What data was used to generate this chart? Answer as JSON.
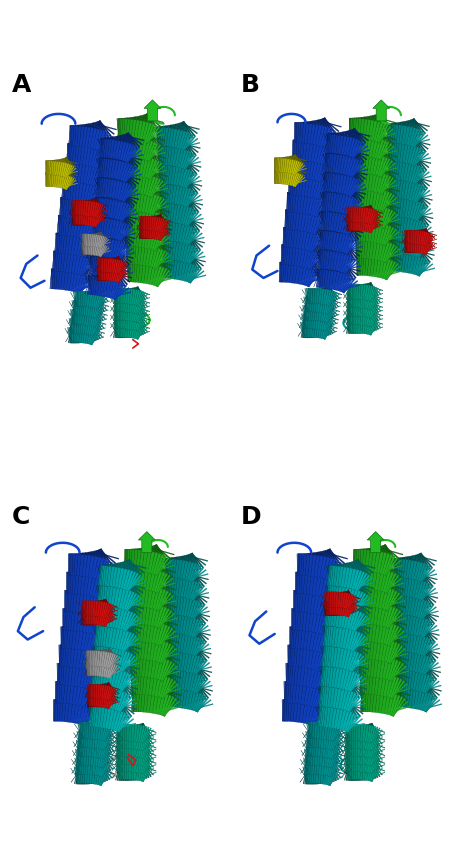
{
  "panels": [
    "A",
    "B",
    "C",
    "D"
  ],
  "label_fontsize": 18,
  "label_fontweight": "bold",
  "background_color": "#ffffff",
  "fig_width": 4.72,
  "fig_height": 8.6,
  "colors": {
    "blue": "#1144cc",
    "blue2": "#2255dd",
    "green": "#22bb22",
    "teal": "#009999",
    "teal2": "#00aaaa",
    "red": "#dd1111",
    "yellow": "#cccc00",
    "gray": "#aaaaaa",
    "cyan": "#00bbbb",
    "dark_green": "#007700"
  }
}
